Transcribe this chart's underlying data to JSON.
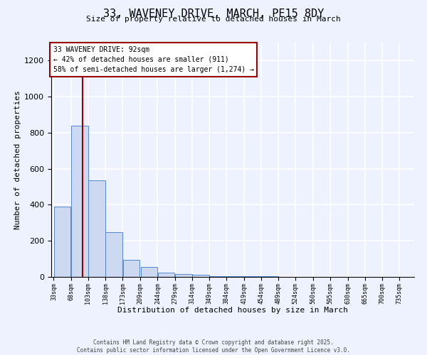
{
  "title_line1": "33, WAVENEY DRIVE, MARCH, PE15 8DY",
  "title_line2": "Size of property relative to detached houses in March",
  "xlabel": "Distribution of detached houses by size in March",
  "ylabel": "Number of detached properties",
  "bins": [
    33,
    68,
    103,
    138,
    173,
    209,
    244,
    279,
    314,
    349,
    384,
    419,
    454,
    489,
    524,
    560,
    595,
    630,
    665,
    700,
    735
  ],
  "bar_heights": [
    390,
    840,
    535,
    248,
    95,
    55,
    22,
    14,
    10,
    5,
    3,
    2,
    2,
    1,
    1,
    1,
    0,
    0,
    1,
    0
  ],
  "bar_facecolor": "#ccd9f0",
  "bar_edgecolor": "#5588cc",
  "property_size": 92,
  "vline_color": "#990000",
  "annotation_text": "33 WAVENEY DRIVE: 92sqm\n← 42% of detached houses are smaller (911)\n58% of semi-detached houses are larger (1,274) →",
  "annotation_box_edgecolor": "#990000",
  "annotation_box_facecolor": "#ffffff",
  "ylim": [
    0,
    1300
  ],
  "yticks": [
    0,
    200,
    400,
    600,
    800,
    1000,
    1200
  ],
  "background_color": "#eef2ff",
  "grid_color": "#ffffff",
  "footer_line1": "Contains HM Land Registry data © Crown copyright and database right 2025.",
  "footer_line2": "Contains public sector information licensed under the Open Government Licence v3.0."
}
